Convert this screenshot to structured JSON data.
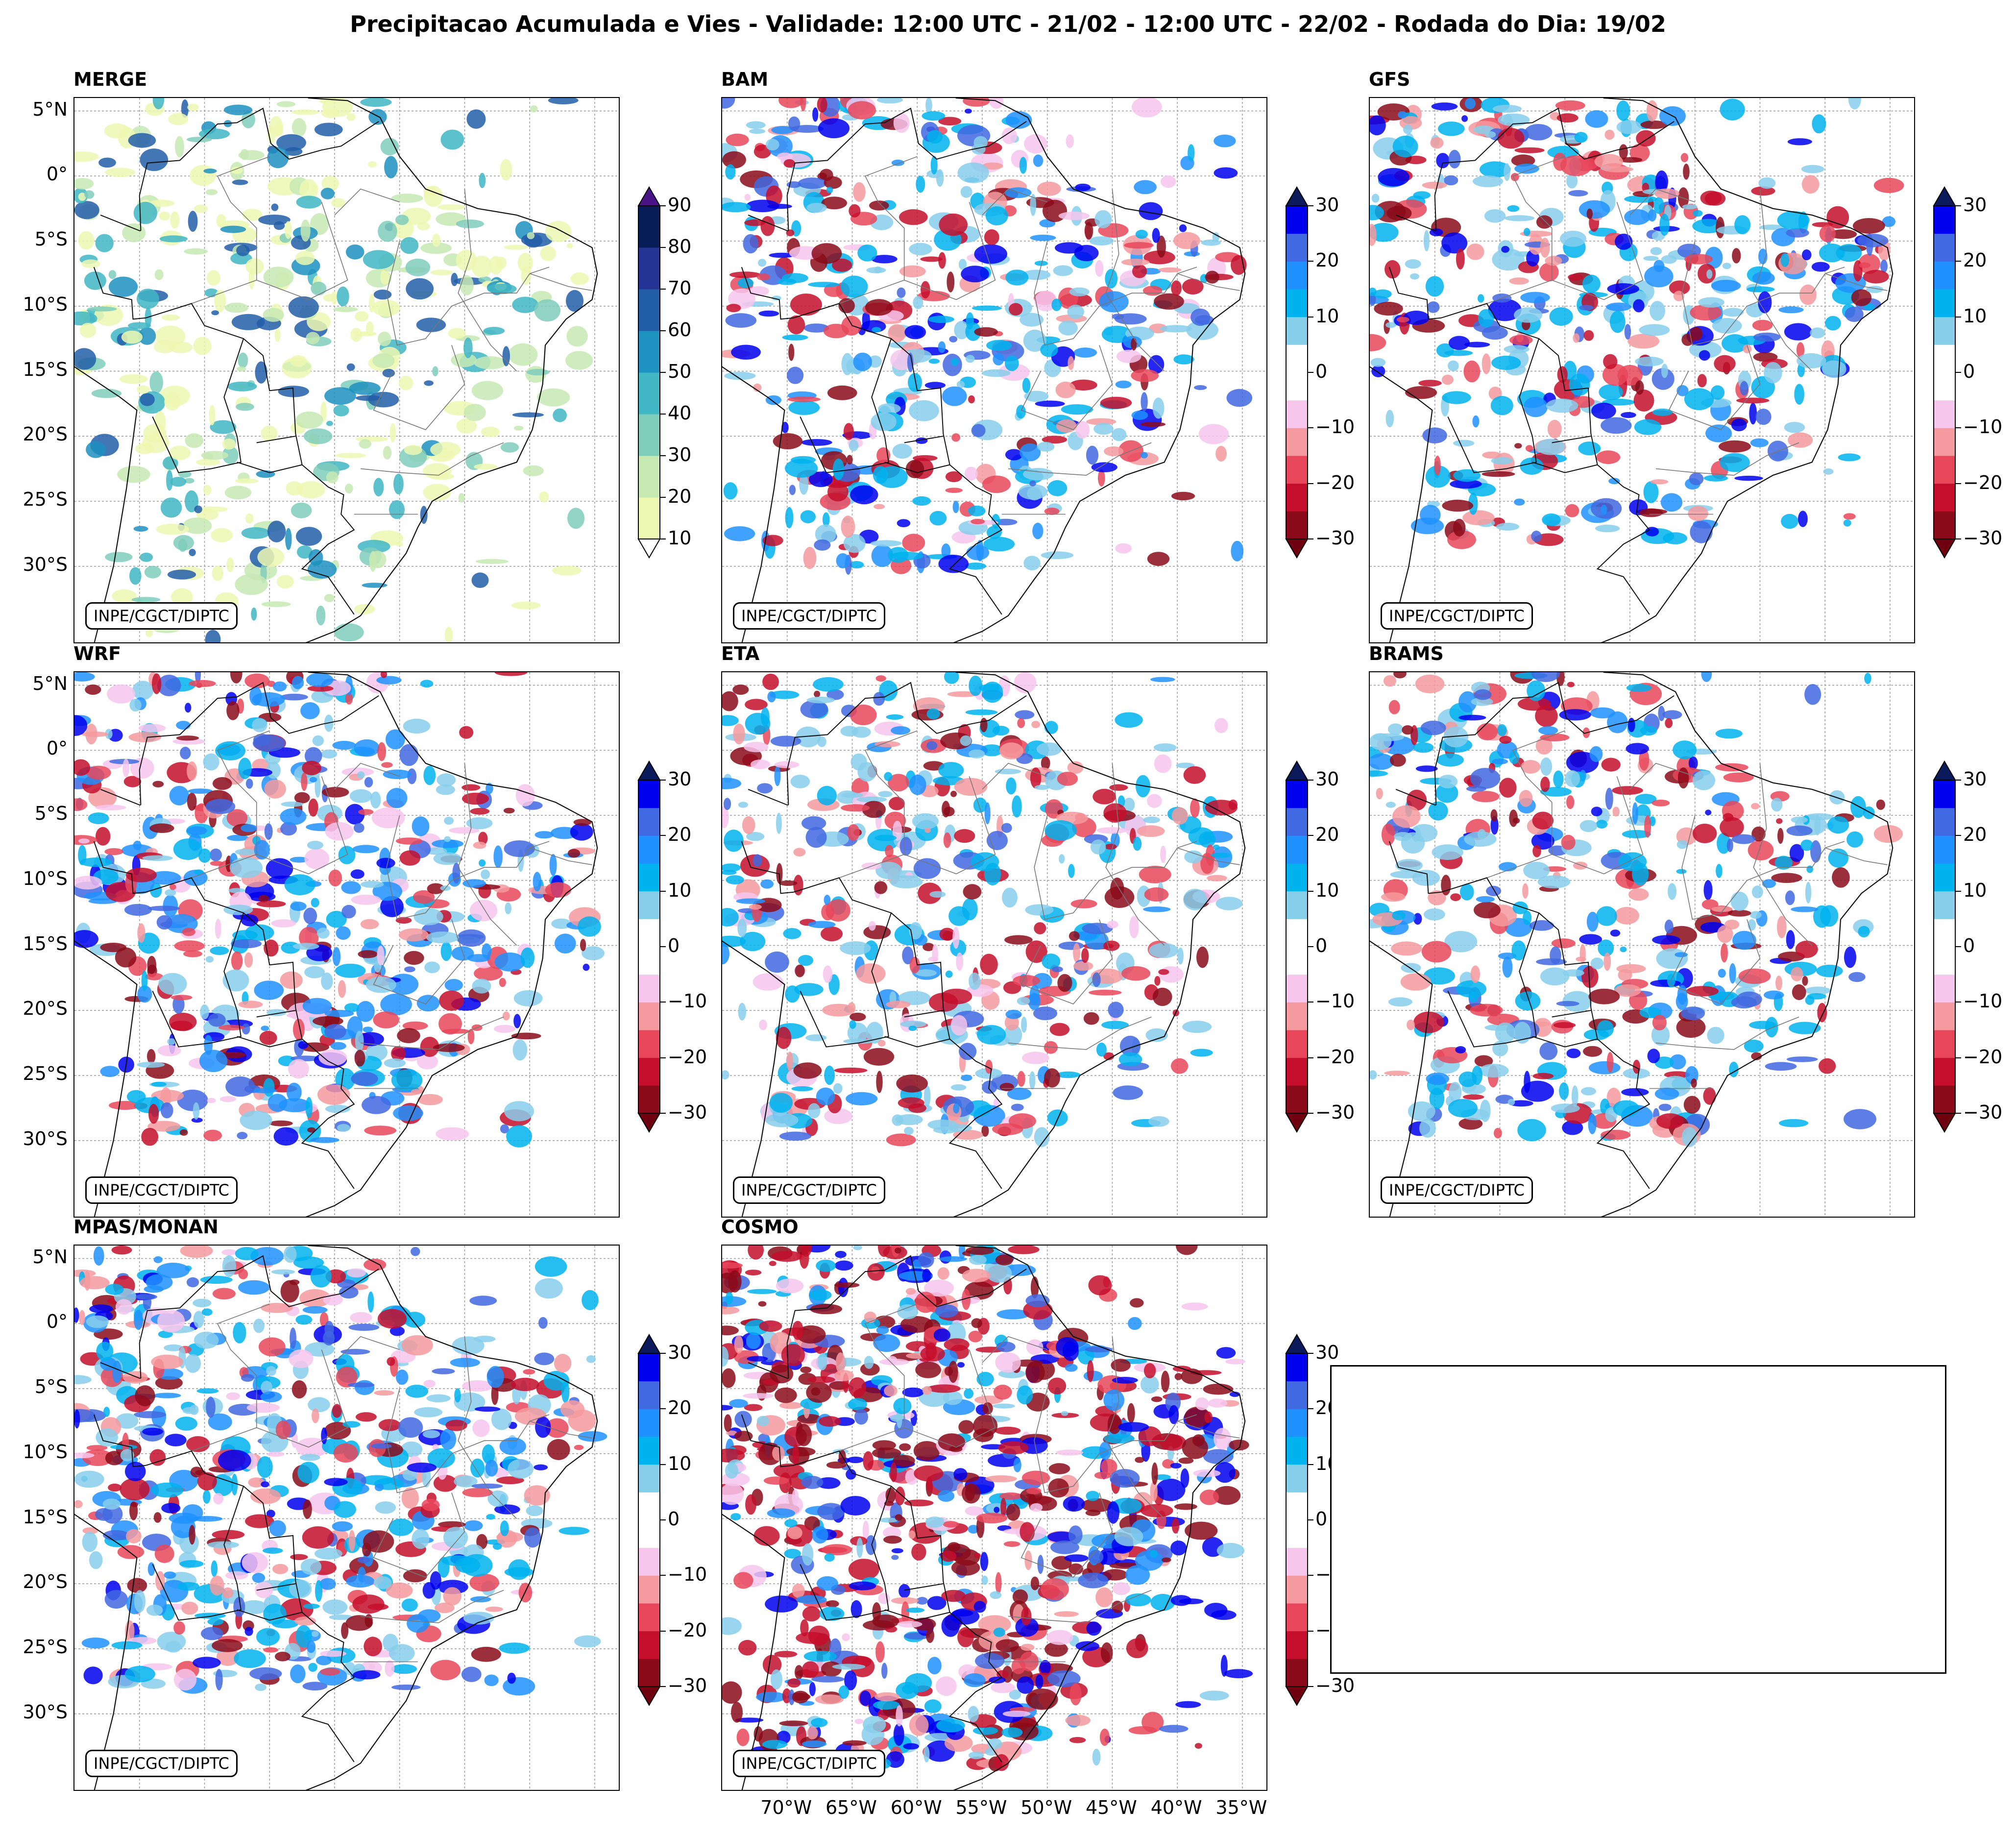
{
  "title": "Precipitacao Acumulada e Vies - Validade: 12:00 UTC - 21/02 - 12:00 UTC - 22/02 - Rodada do Dia: 19/02",
  "credit": "INPE/CGCT/DIPTC",
  "lat_labels": [
    "5°N",
    "0°",
    "5°S",
    "10°S",
    "15°S",
    "20°S",
    "25°S",
    "30°S"
  ],
  "lon_labels": [
    "70°W",
    "65°W",
    "60°W",
    "55°W",
    "50°W",
    "45°W",
    "40°W",
    "35°W"
  ],
  "panels": [
    {
      "title": "MERGE",
      "kind": "precip"
    },
    {
      "title": "BAM",
      "kind": "bias"
    },
    {
      "title": "GFS",
      "kind": "bias"
    },
    {
      "title": "WRF",
      "kind": "bias"
    },
    {
      "title": "ETA",
      "kind": "bias"
    },
    {
      "title": "BRAMS",
      "kind": "bias"
    },
    {
      "title": "MPAS/MONAN",
      "kind": "bias"
    },
    {
      "title": "COSMO",
      "kind": "bias"
    }
  ],
  "colorbars": {
    "precip": {
      "ticks": [
        "90",
        "80",
        "70",
        "60",
        "50",
        "40",
        "30",
        "20",
        "10"
      ],
      "colors": [
        "#edf8b1",
        "#c7e9b4",
        "#7fcdbb",
        "#41b6c4",
        "#1d91c0",
        "#225ea8",
        "#253494",
        "#081d58"
      ],
      "extend_low": "#ffffff",
      "extend_high": "#4a1486"
    },
    "bias": {
      "ticks": [
        "30",
        "20",
        "10",
        "0",
        "−10",
        "−20",
        "−30"
      ],
      "colors": [
        "#8b0a1a",
        "#c40e2b",
        "#e8475a",
        "#f49a9e",
        "#f6c6ec",
        "#ffffff",
        "#ffffff",
        "#87ceeb",
        "#00b2ee",
        "#1e90ff",
        "#4169e1",
        "#0000ee"
      ],
      "extend_low": "#6e0010",
      "extend_high": "#0a1a5a"
    }
  }
}
